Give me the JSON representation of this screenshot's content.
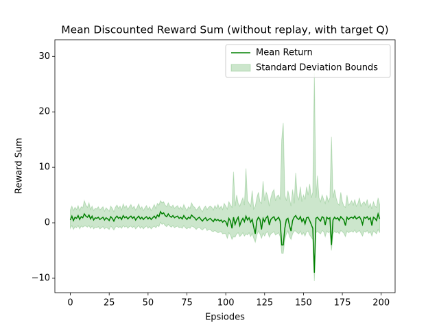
{
  "chart_data": {
    "type": "band-line",
    "title": "Mean Discounted Reward Sum (without replay, with target Q)",
    "x_label": "Epsiodes",
    "y_label": "Reward Sum",
    "xlim": [
      -9.95,
      208.95
    ],
    "ylim": [
      -12.6,
      33.0
    ],
    "xticks": [
      0,
      25,
      50,
      75,
      100,
      125,
      150,
      175,
      200
    ],
    "yticks": [
      {
        "value": -10,
        "label": "−10"
      },
      0,
      10,
      20,
      30
    ],
    "legend": "upper right",
    "x": [
      0,
      1,
      2,
      3,
      4,
      5,
      6,
      7,
      8,
      9,
      10,
      11,
      12,
      13,
      14,
      15,
      16,
      17,
      18,
      19,
      20,
      21,
      22,
      23,
      24,
      25,
      26,
      27,
      28,
      29,
      30,
      31,
      32,
      33,
      34,
      35,
      36,
      37,
      38,
      39,
      40,
      41,
      42,
      43,
      44,
      45,
      46,
      47,
      48,
      49,
      50,
      51,
      52,
      53,
      54,
      55,
      56,
      57,
      58,
      59,
      60,
      61,
      62,
      63,
      64,
      65,
      66,
      67,
      68,
      69,
      70,
      71,
      72,
      73,
      74,
      75,
      76,
      77,
      78,
      79,
      80,
      81,
      82,
      83,
      84,
      85,
      86,
      87,
      88,
      89,
      90,
      91,
      92,
      93,
      94,
      95,
      96,
      97,
      98,
      99,
      100,
      101,
      102,
      103,
      104,
      105,
      106,
      107,
      108,
      109,
      110,
      111,
      112,
      113,
      114,
      115,
      116,
      117,
      118,
      119,
      120,
      121,
      122,
      123,
      124,
      125,
      126,
      127,
      128,
      129,
      130,
      131,
      132,
      133,
      134,
      135,
      136,
      137,
      138,
      139,
      140,
      141,
      142,
      143,
      144,
      145,
      146,
      147,
      148,
      149,
      150,
      151,
      152,
      153,
      154,
      155,
      156,
      157,
      158,
      159,
      160,
      161,
      162,
      163,
      164,
      165,
      166,
      167,
      168,
      169,
      170,
      171,
      172,
      173,
      174,
      175,
      176,
      177,
      178,
      179,
      180,
      181,
      182,
      183,
      184,
      185,
      186,
      187,
      188,
      189,
      190,
      191,
      192,
      193,
      194,
      195,
      196,
      197,
      198,
      199
    ],
    "series": [
      {
        "name": "Mean Return",
        "color": "#008000",
        "values": [
          0.5,
          1.2,
          0.4,
          1.0,
          0.8,
          1.3,
          0.6,
          1.1,
          0.9,
          1.6,
          1.2,
          1.0,
          1.4,
          0.7,
          1.2,
          0.5,
          0.9,
          0.8,
          1.0,
          0.6,
          0.8,
          1.0,
          0.5,
          0.9,
          0.7,
          0.4,
          1.1,
          0.8,
          0.3,
          0.9,
          1.2,
          0.8,
          1.0,
          0.6,
          1.3,
          0.9,
          1.1,
          0.7,
          1.0,
          1.2,
          0.8,
          1.1,
          0.5,
          0.9,
          1.2,
          0.7,
          1.0,
          0.6,
          0.9,
          1.1,
          0.7,
          1.0,
          0.6,
          0.9,
          1.2,
          0.8,
          1.4,
          1.1,
          2.0,
          1.6,
          1.8,
          1.3,
          1.1,
          1.6,
          1.2,
          1.0,
          1.3,
          0.9,
          1.1,
          1.2,
          0.8,
          1.0,
          0.7,
          1.3,
          0.9,
          0.6,
          1.0,
          0.8,
          1.4,
          1.1,
          0.9,
          0.5,
          0.8,
          1.0,
          0.6,
          0.3,
          0.7,
          0.9,
          0.4,
          0.6,
          0.8,
          0.5,
          0.2,
          0.7,
          0.4,
          0.6,
          0.3,
          0.5,
          0.1,
          0.4,
          0.2,
          -0.5,
          0.8,
          0.3,
          -1.0,
          1.0,
          -0.3,
          0.5,
          1.0,
          -0.5,
          0.3,
          0.8,
          0.2,
          1.2,
          0.5,
          0.9,
          0.1,
          0.6,
          -0.8,
          -2.0,
          0.4,
          1.0,
          0.6,
          -1.2,
          0.8,
          0.2,
          0.9,
          1.2,
          -0.4,
          0.6,
          0.9,
          1.1,
          0.4,
          0.7,
          1.0,
          0.3,
          -4.0,
          -4.0,
          -1.0,
          0.6,
          0.8,
          -0.5,
          -1.5,
          0.4,
          1.0,
          1.3,
          0.8,
          0.6,
          1.1,
          0.2,
          0.7,
          -0.2,
          0.9,
          1.0,
          0.4,
          -0.3,
          -1.0,
          -9.0,
          0.8,
          1.0,
          0.6,
          0.3,
          1.1,
          0.9,
          -0.4,
          1.0,
          0.7,
          0.9,
          -4.0,
          0.5,
          1.0,
          0.7,
          0.9,
          0.4,
          1.1,
          0.8,
          0.5,
          -0.5,
          1.0,
          0.6,
          0.9,
          1.0,
          0.8,
          1.2,
          0.7,
          0.9,
          1.1,
          0.6,
          -0.3,
          1.0,
          0.8,
          1.1,
          0.6,
          0.9,
          -0.5,
          1.0,
          0.8,
          0.4,
          1.6,
          0.7
        ]
      },
      {
        "name": "Standard Deviation Bounds",
        "color": "#008000",
        "upper": [
          2.3,
          3.0,
          2.2,
          2.8,
          2.4,
          3.1,
          2.2,
          2.9,
          2.7,
          4.0,
          3.2,
          2.8,
          3.6,
          2.4,
          3.0,
          2.2,
          2.6,
          2.5,
          2.9,
          2.3,
          2.6,
          2.9,
          2.1,
          2.7,
          2.4,
          2.1,
          3.0,
          2.6,
          2.0,
          2.8,
          3.2,
          2.6,
          3.0,
          2.3,
          3.4,
          2.7,
          3.1,
          2.4,
          2.9,
          3.3,
          2.6,
          3.0,
          2.3,
          2.8,
          3.4,
          2.5,
          2.9,
          2.2,
          2.7,
          3.1,
          2.4,
          2.9,
          2.2,
          2.7,
          3.3,
          2.6,
          3.5,
          3.2,
          4.0,
          3.6,
          3.8,
          3.2,
          2.9,
          3.6,
          3.0,
          2.8,
          3.2,
          2.6,
          2.9,
          3.1,
          2.5,
          2.9,
          2.4,
          3.3,
          2.7,
          2.2,
          2.9,
          2.6,
          3.6,
          3.0,
          2.8,
          2.3,
          2.6,
          3.0,
          2.4,
          2.0,
          2.7,
          3.0,
          2.4,
          2.8,
          3.0,
          2.8,
          2.3,
          3.1,
          2.6,
          3.3,
          2.5,
          3.0,
          2.4,
          3.5,
          3.0,
          2.5,
          3.8,
          3.2,
          2.8,
          9.2,
          3.0,
          5.0,
          3.5,
          3.0,
          3.8,
          4.5,
          3.2,
          9.8,
          4.0,
          3.5,
          3.0,
          5.8,
          2.5,
          3.0,
          4.5,
          5.5,
          3.8,
          3.5,
          7.5,
          4.0,
          5.5,
          4.8,
          3.0,
          4.5,
          5.5,
          6.0,
          4.0,
          4.8,
          5.0,
          4.2,
          15.0,
          18.0,
          5.0,
          4.0,
          5.8,
          4.5,
          3.0,
          6.0,
          3.5,
          9.0,
          4.8,
          4.2,
          6.5,
          3.8,
          5.0,
          4.2,
          6.5,
          5.0,
          7.0,
          4.5,
          5.5,
          27.0,
          4.5,
          8.5,
          4.5,
          3.8,
          5.0,
          4.2,
          3.5,
          5.0,
          3.8,
          4.5,
          15.5,
          4.5,
          6.0,
          4.5,
          3.5,
          3.2,
          5.5,
          3.8,
          3.0,
          2.8,
          5.0,
          3.2,
          3.5,
          4.0,
          3.2,
          4.2,
          3.0,
          3.5,
          4.5,
          3.0,
          3.5,
          3.8,
          3.2,
          4.2,
          2.8,
          3.5,
          2.5,
          3.8,
          3.0,
          2.8,
          4.5,
          3.3
        ],
        "lower": [
          -1.0,
          -0.5,
          -1.2,
          -0.7,
          -0.9,
          -0.5,
          -1.1,
          -0.6,
          -0.8,
          -0.6,
          -0.6,
          -0.8,
          -0.5,
          -1.0,
          -0.6,
          -1.1,
          -0.8,
          -0.9,
          -0.7,
          -1.1,
          -0.9,
          -0.7,
          -1.1,
          -0.8,
          -1.0,
          -1.2,
          -0.6,
          -0.9,
          -1.3,
          -0.8,
          -0.6,
          -0.9,
          -0.7,
          -1.0,
          -0.5,
          -0.8,
          -0.6,
          -1.0,
          -0.7,
          -0.6,
          -0.9,
          -0.6,
          -1.1,
          -0.8,
          -0.5,
          -1.0,
          -0.7,
          -1.1,
          -0.8,
          -0.6,
          -1.0,
          -0.7,
          -1.1,
          -0.8,
          -0.6,
          -0.9,
          -0.5,
          -0.7,
          0.1,
          -0.3,
          -0.1,
          -0.5,
          -0.7,
          -0.3,
          -0.6,
          -0.8,
          -0.5,
          -0.9,
          -0.7,
          -0.6,
          -0.9,
          -0.8,
          -1.0,
          -0.5,
          -0.9,
          -1.1,
          -0.8,
          -1.0,
          -0.6,
          -0.7,
          -0.9,
          -1.2,
          -0.9,
          -0.8,
          -1.1,
          -1.3,
          -1.0,
          -0.9,
          -1.4,
          -1.2,
          -1.2,
          -1.5,
          -1.6,
          -1.4,
          -1.6,
          -1.8,
          -1.7,
          -1.6,
          -2.0,
          -1.9,
          -2.0,
          -2.8,
          -1.8,
          -2.2,
          -3.0,
          -2.5,
          -2.6,
          -2.0,
          -1.8,
          -2.5,
          -2.2,
          -1.8,
          -2.4,
          -2.0,
          -2.2,
          -1.8,
          -2.5,
          -1.9,
          -2.8,
          -3.5,
          -2.2,
          -1.5,
          -2.0,
          -2.8,
          -1.9,
          -2.4,
          -1.8,
          -1.6,
          -2.6,
          -2.0,
          -1.8,
          -1.6,
          -2.2,
          -2.0,
          -1.8,
          -2.5,
          -5.5,
          -5.5,
          -3.0,
          -2.0,
          -1.5,
          -2.5,
          -3.0,
          -2.0,
          -1.5,
          -1.5,
          -1.8,
          -2.0,
          -1.5,
          -2.2,
          -1.8,
          -2.4,
          -1.6,
          -1.5,
          -2.2,
          -2.6,
          -3.0,
          -10.5,
          -1.8,
          -1.5,
          -1.8,
          -2.0,
          -1.4,
          -1.6,
          -2.5,
          -1.5,
          -1.8,
          -1.6,
          -5.0,
          -2.0,
          -1.5,
          -1.8,
          -1.6,
          -2.0,
          -1.4,
          -1.6,
          -1.9,
          -2.5,
          -1.5,
          -1.8,
          -1.6,
          -1.5,
          -1.7,
          -1.3,
          -1.8,
          -1.6,
          -1.4,
          -1.9,
          -2.4,
          -1.5,
          -1.7,
          -1.4,
          -1.9,
          -1.6,
          -2.4,
          -1.5,
          -1.7,
          -2.0,
          -1.2,
          -1.8
        ]
      }
    ]
  }
}
